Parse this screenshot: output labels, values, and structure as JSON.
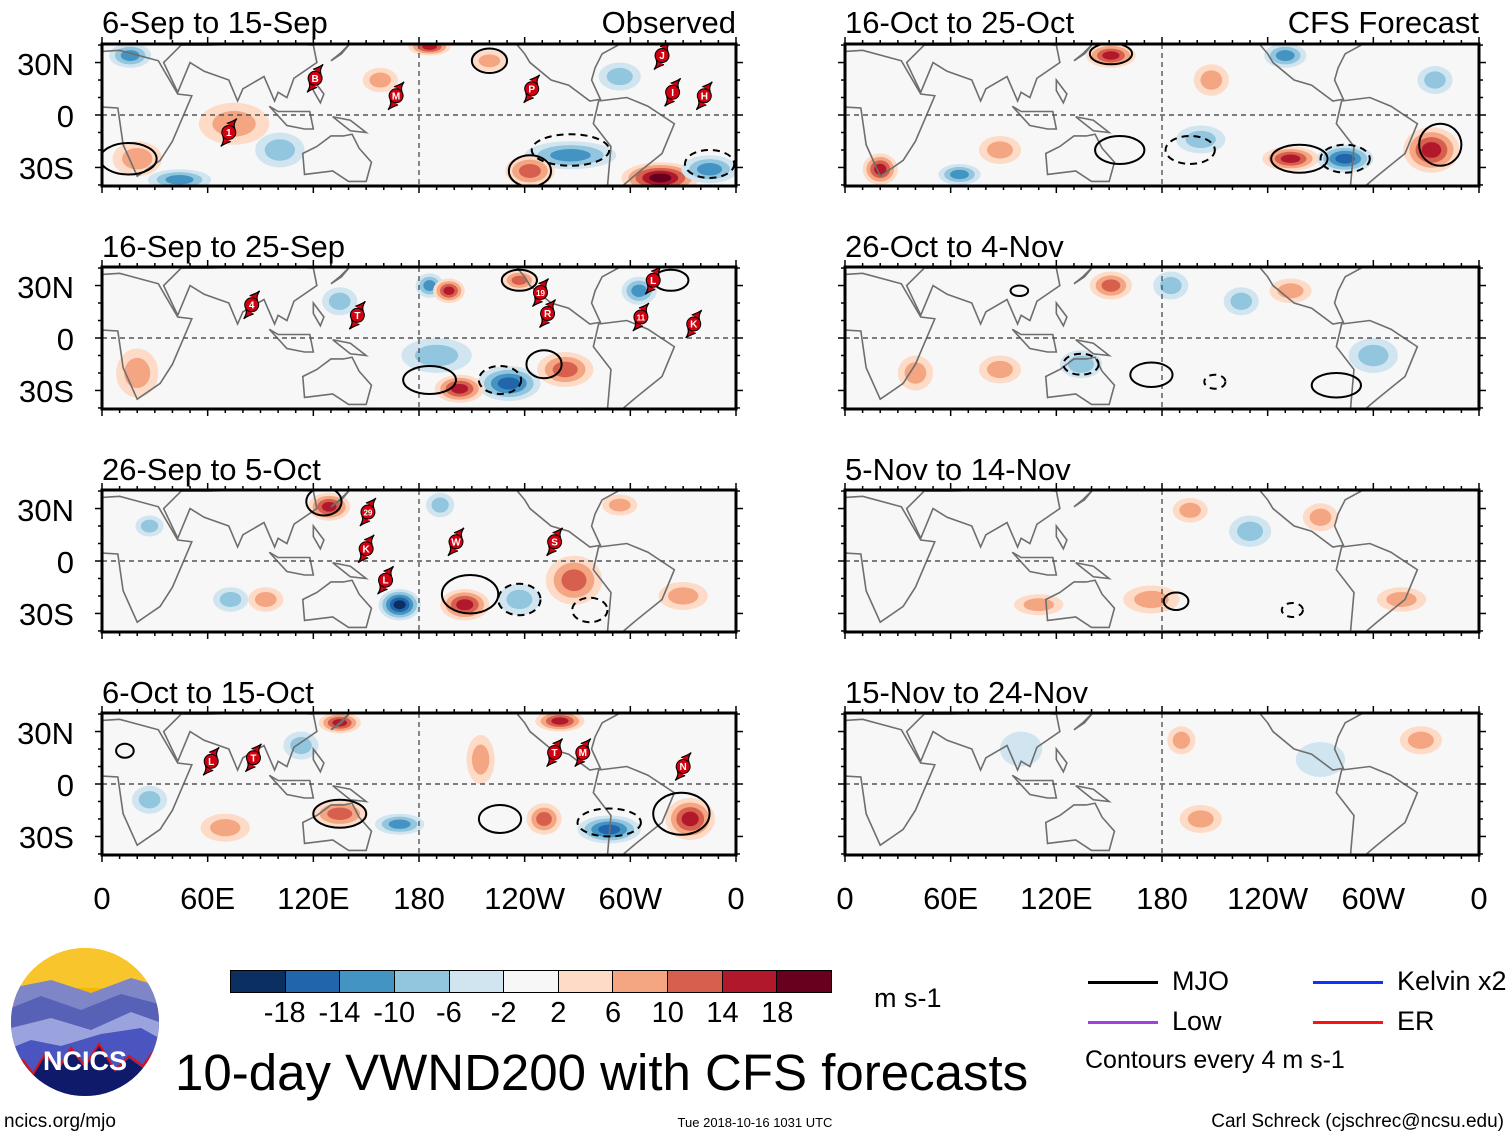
{
  "title": "10-day VWND200 with CFS forecasts",
  "footer": {
    "left": "ncics.org/mjo",
    "center": "Tue 2018-10-16 1031 UTC",
    "right": "Carl Schreck (cjschrec@ncsu.edu)"
  },
  "logo": {
    "text": "NCICS"
  },
  "column_labels": {
    "observed": "Observed",
    "forecast": "CFS Forecast"
  },
  "lat_labels": [
    "30N",
    "0",
    "30S"
  ],
  "lon_labels": [
    "0",
    "60E",
    "120E",
    "180",
    "120W",
    "60W",
    "0"
  ],
  "colorbar": {
    "units": "m s-1",
    "colors": [
      "#0b2f60",
      "#2166ac",
      "#4393c3",
      "#92c5de",
      "#d1e5f0",
      "#f7f7f7",
      "#fddbc7",
      "#f4a582",
      "#d6604d",
      "#b2182b",
      "#67001f"
    ],
    "labels": [
      "-18",
      "-14",
      "-10",
      "-6",
      "-2",
      "2",
      "6",
      "10",
      "14",
      "18"
    ]
  },
  "legend": {
    "items": [
      {
        "label": "MJO",
        "color": "#000000"
      },
      {
        "label": "Low",
        "color": "#a040e0"
      },
      {
        "label": "Kelvin x2",
        "color": "#1030ff"
      },
      {
        "label": "ER",
        "color": "#ff1010"
      }
    ],
    "note": "Contours every 4 m s-1"
  },
  "panels": [
    {
      "title": "6-Sep to 15-Sep",
      "type": "observed",
      "anomalies": [
        [
          317,
          -36,
          18,
          22,
          9
        ],
        [
          266,
          -23,
          -10,
          26,
          8
        ],
        [
          345,
          -31,
          -10,
          16,
          8
        ],
        [
          44,
          -37,
          -10,
          18,
          6
        ],
        [
          243,
          -32,
          8,
          14,
          9
        ],
        [
          186,
          39,
          14,
          12,
          5
        ],
        [
          16,
          34,
          -10,
          12,
          7
        ],
        [
          158,
          20,
          6,
          10,
          7
        ],
        [
          101,
          -20,
          -4,
          14,
          10
        ],
        [
          220,
          31,
          6,
          10,
          6
        ],
        [
          294,
          22,
          -6,
          12,
          8
        ],
        [
          20,
          -25,
          6,
          14,
          10
        ],
        [
          75,
          -5,
          4,
          20,
          12
        ]
      ],
      "contours": [
        [
          15,
          -25,
          1,
          16,
          9
        ],
        [
          243,
          -32,
          1,
          12,
          9
        ],
        [
          266,
          -20,
          -1,
          22,
          9
        ],
        [
          345,
          -28,
          -1,
          14,
          8
        ],
        [
          220,
          31,
          1,
          10,
          7
        ]
      ],
      "storms": [
        [
          121,
          21,
          "B"
        ],
        [
          167,
          11,
          "M"
        ],
        [
          244,
          15,
          "P"
        ],
        [
          318,
          34,
          "J"
        ],
        [
          324,
          13,
          "I"
        ],
        [
          342,
          11,
          "H"
        ],
        [
          72,
          -10,
          "1"
        ]
      ]
    },
    {
      "title": "16-Sep to 25-Sep",
      "type": "observed",
      "anomalies": [
        [
          186,
          30,
          -10,
          8,
          7
        ],
        [
          197,
          27,
          14,
          9,
          7
        ],
        [
          231,
          -26,
          -14,
          18,
          10
        ],
        [
          203,
          -29,
          14,
          14,
          8
        ],
        [
          263,
          -18,
          10,
          16,
          10
        ],
        [
          305,
          27,
          -10,
          10,
          8
        ],
        [
          237,
          33,
          8,
          10,
          6
        ],
        [
          135,
          21,
          -6,
          10,
          8
        ],
        [
          190,
          -10,
          -4,
          20,
          10
        ],
        [
          20,
          -20,
          4,
          12,
          14
        ]
      ],
      "contours": [
        [
          186,
          -24,
          1,
          15,
          8
        ],
        [
          251,
          -15,
          1,
          10,
          8
        ],
        [
          226,
          -24,
          -1,
          12,
          8
        ],
        [
          323,
          33,
          1,
          10,
          6
        ],
        [
          237,
          33,
          1,
          10,
          6
        ]
      ],
      "storms": [
        [
          85,
          19,
          "4"
        ],
        [
          145,
          13,
          "T"
        ],
        [
          249,
          26,
          "19"
        ],
        [
          253,
          14,
          "R"
        ],
        [
          313,
          33,
          "L"
        ],
        [
          306,
          12,
          "11"
        ],
        [
          336,
          8,
          "K"
        ]
      ]
    },
    {
      "title": "26-Sep to 5-Oct",
      "type": "observed",
      "anomalies": [
        [
          129,
          31,
          14,
          12,
          8
        ],
        [
          169,
          -25,
          -18,
          12,
          9
        ],
        [
          206,
          -25,
          14,
          14,
          9
        ],
        [
          268,
          -11,
          10,
          16,
          14
        ],
        [
          27,
          20,
          -6,
          8,
          6
        ],
        [
          73,
          -22,
          -6,
          10,
          7
        ],
        [
          93,
          -22,
          6,
          10,
          7
        ],
        [
          192,
          32,
          -6,
          8,
          7
        ],
        [
          237,
          -22,
          -6,
          12,
          9
        ],
        [
          294,
          32,
          6,
          10,
          6
        ],
        [
          330,
          -20,
          6,
          14,
          8
        ]
      ],
      "contours": [
        [
          209,
          -19,
          1,
          16,
          11
        ],
        [
          126,
          34,
          1,
          10,
          8
        ],
        [
          237,
          -22,
          -1,
          12,
          9
        ],
        [
          277,
          -28,
          -1,
          10,
          7
        ]
      ],
      "storms": [
        [
          151,
          28,
          "29"
        ],
        [
          150,
          7,
          "K"
        ],
        [
          161,
          -11,
          "L"
        ],
        [
          201,
          11,
          "W"
        ],
        [
          257,
          11,
          "S"
        ]
      ]
    },
    {
      "title": "6-Oct to 15-Oct",
      "type": "observed",
      "anomalies": [
        [
          135,
          35,
          14,
          12,
          6
        ],
        [
          260,
          36,
          14,
          14,
          6
        ],
        [
          334,
          -20,
          14,
          14,
          12
        ],
        [
          135,
          -17,
          10,
          16,
          8
        ],
        [
          169,
          -23,
          -10,
          14,
          6
        ],
        [
          288,
          -26,
          -14,
          18,
          8
        ],
        [
          251,
          -20,
          8,
          10,
          9
        ],
        [
          113,
          22,
          -6,
          10,
          8
        ],
        [
          215,
          14,
          6,
          8,
          14
        ],
        [
          27,
          -9,
          -6,
          10,
          8
        ],
        [
          70,
          -25,
          4,
          14,
          8
        ]
      ],
      "contours": [
        [
          135,
          -17,
          1,
          15,
          8
        ],
        [
          226,
          -20,
          1,
          12,
          8
        ],
        [
          329,
          -17,
          1,
          16,
          12
        ],
        [
          288,
          -22,
          -1,
          18,
          8
        ],
        [
          13,
          19,
          1,
          5,
          4
        ]
      ],
      "storms": [
        [
          62,
          13,
          "L"
        ],
        [
          86,
          15,
          "T"
        ],
        [
          257,
          18,
          "T"
        ],
        [
          273,
          18,
          "M"
        ],
        [
          330,
          10,
          "N"
        ]
      ]
    },
    {
      "title": "16-Oct to 25-Oct",
      "type": "forecast",
      "anomalies": [
        [
          151,
          34,
          14,
          14,
          7
        ],
        [
          253,
          -25,
          14,
          16,
          7
        ],
        [
          284,
          -25,
          -14,
          16,
          8
        ],
        [
          333,
          -20,
          14,
          16,
          13
        ],
        [
          20,
          -31,
          14,
          10,
          9
        ],
        [
          65,
          -34,
          -10,
          12,
          6
        ],
        [
          250,
          34,
          -10,
          12,
          7
        ],
        [
          208,
          20,
          6,
          10,
          9
        ],
        [
          202,
          -14,
          -6,
          14,
          8
        ],
        [
          88,
          -20,
          6,
          12,
          8
        ],
        [
          335,
          20,
          -6,
          10,
          8
        ]
      ],
      "contours": [
        [
          151,
          35,
          1,
          12,
          6
        ],
        [
          156,
          -20,
          1,
          14,
          8
        ],
        [
          196,
          -20,
          -1,
          14,
          8
        ],
        [
          258,
          -25,
          1,
          16,
          8
        ],
        [
          338,
          -17,
          1,
          12,
          12
        ],
        [
          284,
          -25,
          -1,
          14,
          8
        ]
      ],
      "storms": []
    },
    {
      "title": "26-Oct to 4-Nov",
      "type": "forecast",
      "anomalies": [
        [
          151,
          30,
          8,
          12,
          8
        ],
        [
          185,
          30,
          -6,
          10,
          8
        ],
        [
          88,
          -18,
          6,
          12,
          8
        ],
        [
          134,
          -15,
          -4,
          12,
          8
        ],
        [
          253,
          27,
          6,
          12,
          7
        ],
        [
          225,
          21,
          -4,
          10,
          8
        ],
        [
          300,
          -10,
          -4,
          14,
          10
        ],
        [
          40,
          -20,
          4,
          10,
          10
        ]
      ],
      "contours": [
        [
          174,
          -21,
          1,
          12,
          7
        ],
        [
          279,
          -27,
          1,
          14,
          7
        ],
        [
          99,
          27,
          1,
          5,
          3
        ],
        [
          134,
          -15,
          -1,
          10,
          6
        ],
        [
          210,
          -25,
          -1,
          6,
          4
        ]
      ],
      "storms": []
    },
    {
      "title": "5-Nov to 14-Nov",
      "type": "forecast",
      "anomalies": [
        [
          196,
          29,
          4,
          10,
          7
        ],
        [
          174,
          -22,
          4,
          16,
          8
        ],
        [
          230,
          17,
          -4,
          12,
          9
        ],
        [
          316,
          -22,
          4,
          14,
          7
        ],
        [
          270,
          25,
          4,
          10,
          8
        ],
        [
          110,
          -25,
          4,
          14,
          6
        ]
      ],
      "contours": [
        [
          188,
          -23,
          1,
          7,
          5
        ],
        [
          254,
          -28,
          -1,
          6,
          4
        ]
      ],
      "storms": []
    },
    {
      "title": "15-Nov to 24-Nov",
      "type": "forecast",
      "anomalies": [
        [
          191,
          25,
          4,
          8,
          8
        ],
        [
          327,
          25,
          4,
          12,
          8
        ],
        [
          270,
          14,
          -2,
          14,
          10
        ],
        [
          202,
          -20,
          4,
          12,
          8
        ],
        [
          100,
          20,
          -2,
          12,
          10
        ]
      ],
      "contours": [],
      "storms": []
    }
  ]
}
